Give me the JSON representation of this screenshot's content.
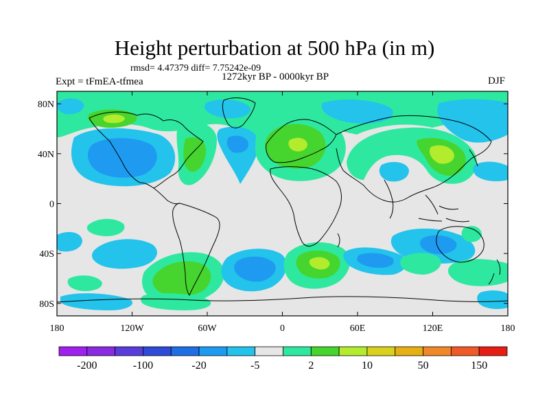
{
  "title": "Height perturbation at 500 hPa (in m)",
  "stats": "rmsd= 4.47379 diff= 7.75242e-09",
  "experiment": "Expt = tFmEA-tfmea",
  "period": "1272kyr BP - 0000kyr BP",
  "season": "DJF",
  "lat_ticks": [
    "80N",
    "40N",
    "0",
    "40S",
    "80S"
  ],
  "lat_values": [
    80,
    40,
    0,
    -40,
    -80
  ],
  "lon_ticks": [
    "180",
    "120W",
    "60W",
    "0",
    "60E",
    "120E",
    "180"
  ],
  "lon_values": [
    -180,
    -120,
    -60,
    0,
    60,
    120,
    180
  ],
  "colorbar": {
    "colors": [
      "#a020f0",
      "#8a2be2",
      "#5a3cdc",
      "#2f4ad7",
      "#1e6ee6",
      "#1e9bf0",
      "#23c3eb",
      "#e6e6e6",
      "#2ee8a0",
      "#45d52e",
      "#b3ec2d",
      "#d8d21e",
      "#e6b014",
      "#f08728",
      "#f05a28",
      "#e61e14"
    ],
    "labels": [
      "-200",
      "-100",
      "-20",
      "-5",
      "2",
      "10",
      "50",
      "150"
    ]
  },
  "chart_data": {
    "type": "filled-contour-map",
    "variable": "500 hPa geopotential height perturbation (m)",
    "lat_range": [
      -90,
      90
    ],
    "lon_range": [
      -180,
      180
    ],
    "features": [
      {
        "label": "negative anomaly",
        "level": -20,
        "lon": -125,
        "lat": 38
      },
      {
        "label": "negative anomaly",
        "level": -5,
        "lon": -30,
        "lat": 40
      },
      {
        "label": "positive anomaly",
        "level": 10,
        "lon": 10,
        "lat": 45
      },
      {
        "label": "positive anomaly",
        "level": 10,
        "lon": 125,
        "lat": 42
      },
      {
        "label": "positive anomaly",
        "level": 10,
        "lon": -140,
        "lat": 72
      },
      {
        "label": "negative anomaly",
        "level": -5,
        "lon": 90,
        "lat": 28
      },
      {
        "label": "negative anomaly",
        "level": -5,
        "lon": 30,
        "lat": 70
      },
      {
        "label": "negative anomaly",
        "level": -5,
        "lon": 165,
        "lat": 68
      },
      {
        "label": "positive anomaly",
        "level": 10,
        "lon": 30,
        "lat": -48
      },
      {
        "label": "negative anomaly",
        "level": -5,
        "lon": -15,
        "lat": -52
      },
      {
        "label": "positive anomaly",
        "level": 10,
        "lon": -85,
        "lat": -55
      },
      {
        "label": "negative anomaly",
        "level": -5,
        "lon": -135,
        "lat": -42
      },
      {
        "label": "negative anomaly",
        "level": -5,
        "lon": 100,
        "lat": -35
      },
      {
        "label": "positive anomaly",
        "level": 2,
        "lon": 130,
        "lat": -52
      }
    ]
  }
}
